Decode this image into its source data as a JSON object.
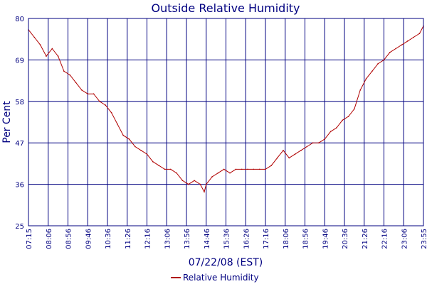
{
  "chart_data": {
    "type": "line",
    "title": "Outside Relative Humidity",
    "xlabel": "07/22/08 (EST)",
    "ylabel": "Per Cent",
    "ylim": [
      25,
      80
    ],
    "yticks": [
      "25",
      "36",
      "47",
      "58",
      "69",
      "80"
    ],
    "xticks": [
      "07:15",
      "08:06",
      "08:56",
      "09:46",
      "10:36",
      "11:26",
      "12:16",
      "13:06",
      "13:56",
      "14:46",
      "15:36",
      "16:26",
      "17:16",
      "18:06",
      "18:56",
      "19:46",
      "20:36",
      "21:26",
      "22:16",
      "23:06",
      "23:55"
    ],
    "grid": true,
    "legend_position": "bottom-center",
    "colors": {
      "series": "#b00000",
      "axis": "#000080",
      "grid": "#000080",
      "text": "#000080",
      "legend_text": "#000080"
    },
    "series": [
      {
        "name": "Relative Humidity",
        "x": [
          "07:15",
          "07:30",
          "07:45",
          "08:00",
          "08:15",
          "08:30",
          "08:45",
          "09:00",
          "09:15",
          "09:30",
          "09:45",
          "10:00",
          "10:15",
          "10:30",
          "10:45",
          "11:00",
          "11:15",
          "11:30",
          "11:45",
          "12:00",
          "12:15",
          "12:30",
          "12:45",
          "13:00",
          "13:15",
          "13:30",
          "13:45",
          "14:00",
          "14:15",
          "14:30",
          "14:40",
          "14:45",
          "15:00",
          "15:15",
          "15:30",
          "15:45",
          "16:00",
          "16:15",
          "16:30",
          "16:45",
          "17:00",
          "17:15",
          "17:30",
          "17:45",
          "18:00",
          "18:15",
          "18:30",
          "18:45",
          "19:00",
          "19:15",
          "19:30",
          "19:45",
          "20:00",
          "20:15",
          "20:30",
          "20:45",
          "21:00",
          "21:15",
          "21:30",
          "21:45",
          "22:00",
          "22:15",
          "22:30",
          "22:45",
          "23:00",
          "23:15",
          "23:30",
          "23:45",
          "23:55"
        ],
        "values": [
          77,
          75,
          73,
          70,
          72,
          70,
          66,
          65,
          63,
          61,
          60,
          60,
          58,
          57,
          55,
          52,
          49,
          48,
          46,
          45,
          44,
          42,
          41,
          40,
          40,
          39,
          37,
          36,
          37,
          36,
          34,
          36,
          38,
          39,
          40,
          39,
          40,
          40,
          40,
          40,
          40,
          40,
          41,
          43,
          45,
          43,
          44,
          45,
          46,
          47,
          47,
          48,
          50,
          51,
          53,
          54,
          56,
          61,
          64,
          66,
          68,
          69,
          71,
          72,
          73,
          74,
          75,
          76,
          78
        ]
      }
    ]
  }
}
